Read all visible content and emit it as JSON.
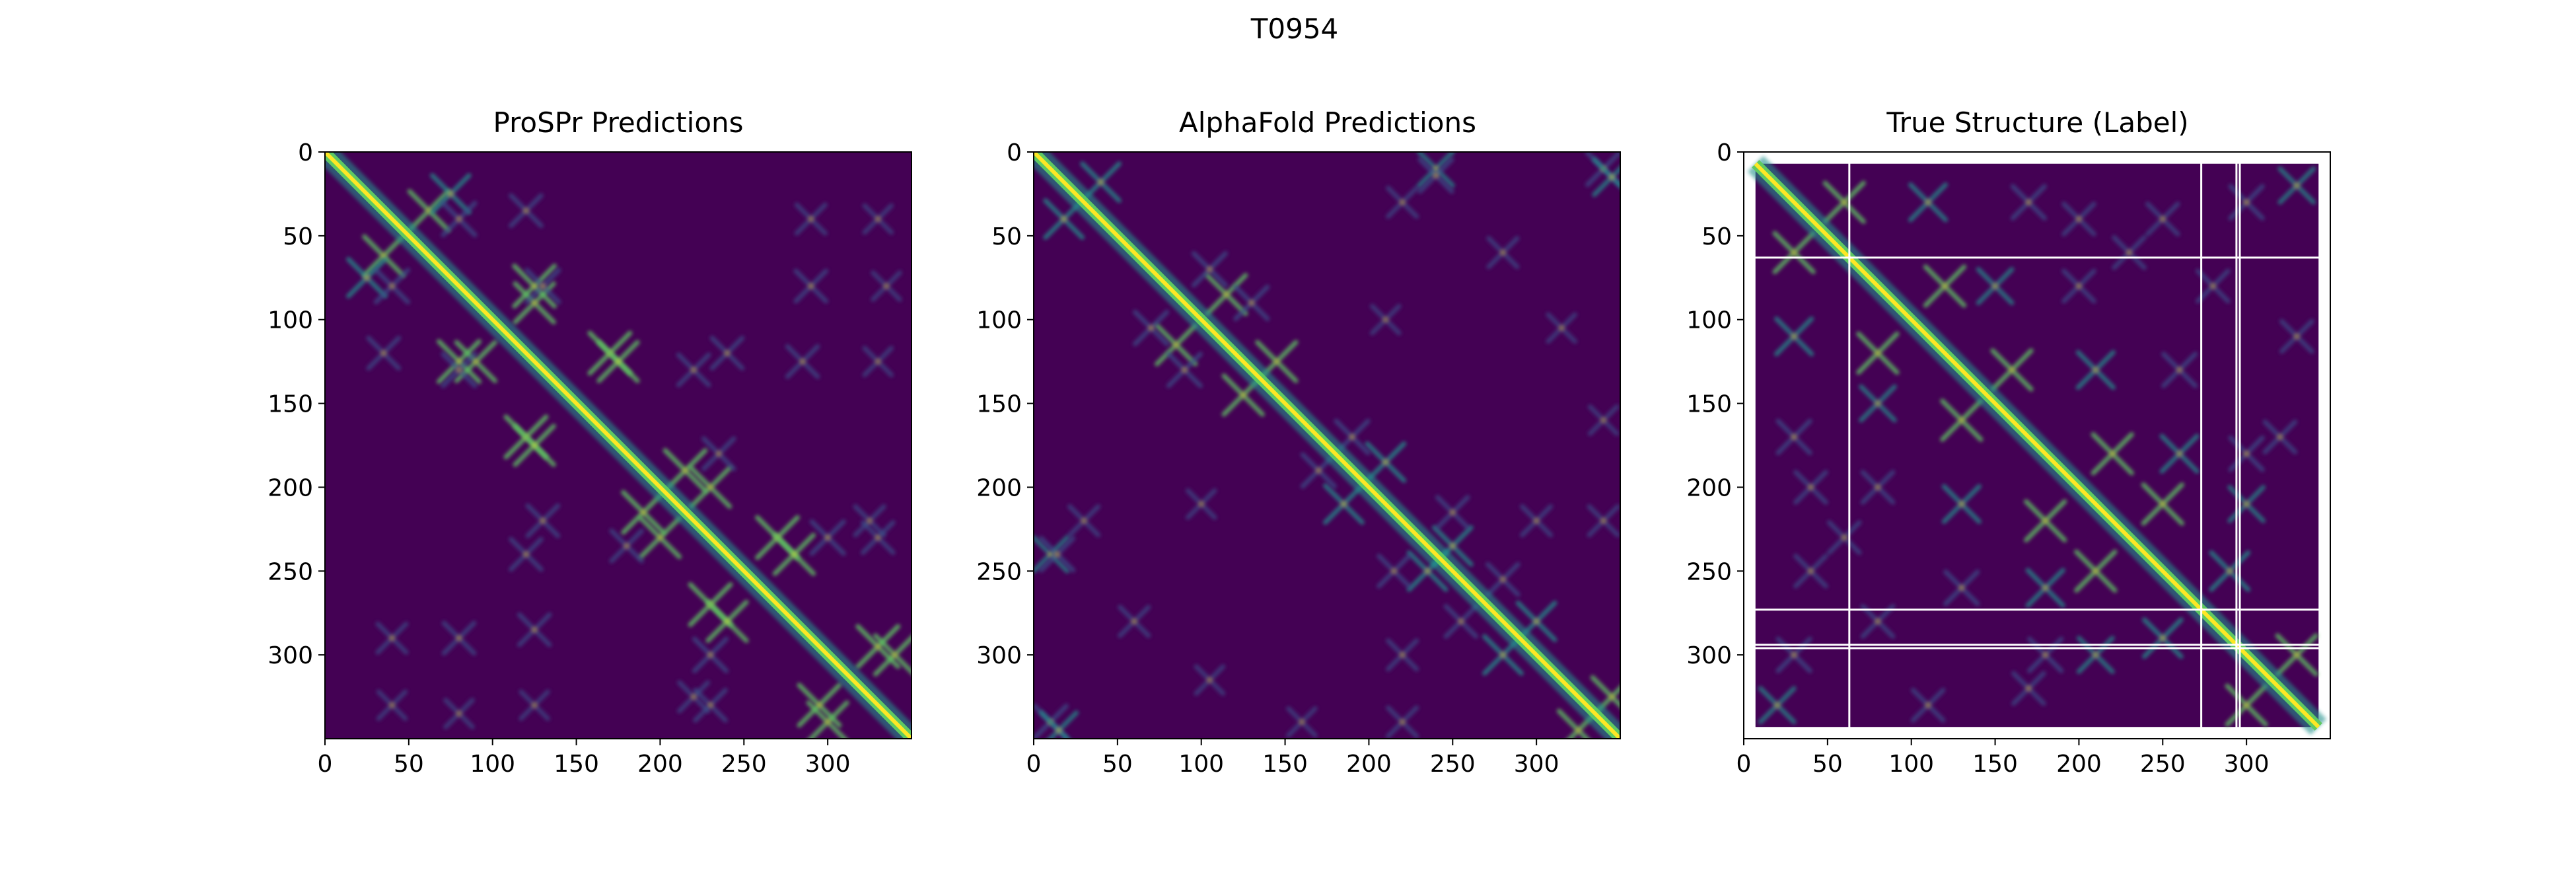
{
  "figure": {
    "suptitle": "T0954"
  },
  "colors": {
    "background": "#440154",
    "low": "#3b528b",
    "mid": "#21918c",
    "high": "#5ec962",
    "peak": "#fde725",
    "gap_line": "#ffffff",
    "axes": "#000000"
  },
  "chart_data": [
    {
      "type": "heatmap",
      "title": "ProSPr Predictions",
      "xlim": [
        0,
        350
      ],
      "ylim": [
        350,
        0
      ],
      "xticks": [
        0,
        50,
        100,
        150,
        200,
        250,
        300
      ],
      "yticks": [
        0,
        50,
        100,
        150,
        200,
        250,
        300
      ],
      "diagonal": true,
      "contacts": [
        [
          35,
          62,
          0.55
        ],
        [
          25,
          75,
          0.5
        ],
        [
          80,
          125,
          0.6
        ],
        [
          90,
          125,
          0.55
        ],
        [
          120,
          170,
          0.6
        ],
        [
          125,
          175,
          0.55
        ],
        [
          190,
          215,
          0.6
        ],
        [
          200,
          230,
          0.55
        ],
        [
          230,
          270,
          0.6
        ],
        [
          240,
          280,
          0.55
        ],
        [
          295,
          330,
          0.6
        ],
        [
          300,
          340,
          0.55
        ],
        [
          40,
          80,
          0.35
        ],
        [
          35,
          120,
          0.3
        ],
        [
          80,
          130,
          0.35
        ],
        [
          120,
          240,
          0.3
        ],
        [
          125,
          285,
          0.3
        ],
        [
          230,
          300,
          0.35
        ],
        [
          230,
          330,
          0.3
        ],
        [
          130,
          220,
          0.3
        ],
        [
          80,
          290,
          0.3
        ],
        [
          40,
          290,
          0.25
        ],
        [
          40,
          330,
          0.2
        ],
        [
          125,
          330,
          0.2
        ],
        [
          80,
          335,
          0.2
        ],
        [
          180,
          235,
          0.3
        ],
        [
          220,
          325,
          0.25
        ]
      ]
    },
    {
      "type": "heatmap",
      "title": "AlphaFold Predictions",
      "xlim": [
        0,
        350
      ],
      "ylim": [
        350,
        0
      ],
      "xticks": [
        0,
        50,
        100,
        150,
        200,
        250,
        300
      ],
      "yticks": [
        0,
        50,
        100,
        150,
        200,
        250,
        300
      ],
      "diagonal": true,
      "contacts": [
        [
          18,
          40,
          0.5
        ],
        [
          85,
          115,
          0.55
        ],
        [
          125,
          145,
          0.55
        ],
        [
          185,
          210,
          0.5
        ],
        [
          235,
          250,
          0.5
        ],
        [
          280,
          300,
          0.5
        ],
        [
          325,
          345,
          0.55
        ],
        [
          10,
          240,
          0.4
        ],
        [
          10,
          340,
          0.35
        ],
        [
          15,
          345,
          0.45
        ],
        [
          14,
          240,
          0.35
        ],
        [
          70,
          105,
          0.35
        ],
        [
          90,
          130,
          0.35
        ],
        [
          170,
          190,
          0.35
        ],
        [
          215,
          250,
          0.3
        ],
        [
          255,
          280,
          0.3
        ],
        [
          220,
          300,
          0.25
        ],
        [
          220,
          340,
          0.25
        ],
        [
          60,
          280,
          0.25
        ],
        [
          30,
          220,
          0.25
        ],
        [
          100,
          210,
          0.2
        ],
        [
          160,
          340,
          0.2
        ],
        [
          105,
          315,
          0.2
        ]
      ]
    },
    {
      "type": "heatmap",
      "title": "True Structure (Label)",
      "xlim": [
        0,
        350
      ],
      "ylim": [
        350,
        0
      ],
      "xticks": [
        0,
        50,
        100,
        150,
        200,
        250,
        300
      ],
      "yticks": [
        0,
        50,
        100,
        150,
        200,
        250,
        300
      ],
      "diagonal": true,
      "valid_range": [
        7,
        343
      ],
      "gap_lines": [
        63,
        273,
        294,
        296
      ],
      "contacts": [
        [
          30,
          60,
          0.55
        ],
        [
          80,
          120,
          0.55
        ],
        [
          130,
          160,
          0.55
        ],
        [
          180,
          220,
          0.55
        ],
        [
          210,
          250,
          0.55
        ],
        [
          250,
          290,
          0.5
        ],
        [
          300,
          330,
          0.55
        ],
        [
          30,
          110,
          0.45
        ],
        [
          80,
          150,
          0.4
        ],
        [
          130,
          210,
          0.45
        ],
        [
          180,
          260,
          0.45
        ],
        [
          210,
          300,
          0.4
        ],
        [
          30,
          170,
          0.35
        ],
        [
          40,
          200,
          0.3
        ],
        [
          80,
          200,
          0.3
        ],
        [
          130,
          260,
          0.35
        ],
        [
          180,
          300,
          0.35
        ],
        [
          20,
          330,
          0.4
        ],
        [
          30,
          300,
          0.35
        ],
        [
          80,
          280,
          0.3
        ],
        [
          110,
          330,
          0.3
        ],
        [
          170,
          320,
          0.3
        ],
        [
          40,
          250,
          0.3
        ],
        [
          60,
          230,
          0.3
        ]
      ]
    }
  ]
}
